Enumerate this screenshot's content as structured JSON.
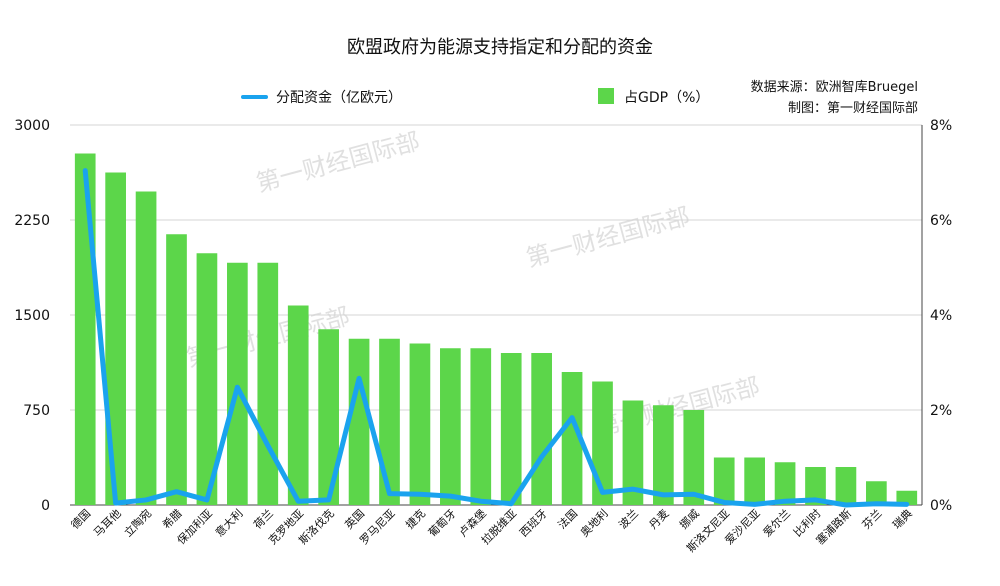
{
  "chart_data": {
    "type": "bar",
    "title": "欧盟政府为能源支持指定和分配的资金",
    "source_lines": [
      "数据来源：欧洲智库Bruegel",
      "制图：第一财经国际部"
    ],
    "watermark": "第一财经国际部",
    "categories": [
      "德国",
      "马耳他",
      "立陶宛",
      "希腊",
      "保加利亚",
      "意大利",
      "荷兰",
      "克罗地亚",
      "斯洛伐克",
      "英国",
      "罗马尼亚",
      "捷克",
      "葡萄牙",
      "卢森堡",
      "拉脱维亚",
      "西班牙",
      "法国",
      "奥地利",
      "波兰",
      "丹麦",
      "挪威",
      "斯洛文尼亚",
      "爱沙尼亚",
      "爱尔兰",
      "比利时",
      "塞浦路斯",
      "芬兰",
      "瑞典"
    ],
    "series": [
      {
        "name": "占GDP（%）",
        "kind": "bar",
        "axis": "right",
        "color": "#5cd64a",
        "values": [
          7.4,
          7.0,
          6.6,
          5.7,
          5.3,
          5.1,
          5.1,
          4.2,
          3.7,
          3.5,
          3.5,
          3.4,
          3.3,
          3.3,
          3.2,
          3.2,
          2.8,
          2.6,
          2.2,
          2.1,
          2.0,
          1.0,
          1.0,
          0.9,
          0.8,
          0.8,
          0.5,
          0.3
        ]
      },
      {
        "name": "分配资金（亿欧元）",
        "kind": "line",
        "axis": "left",
        "color": "#1aa3ee",
        "values": [
          2640,
          15,
          40,
          105,
          40,
          930,
          470,
          30,
          40,
          1000,
          90,
          85,
          70,
          30,
          10,
          380,
          690,
          100,
          125,
          80,
          85,
          20,
          5,
          30,
          40,
          0,
          10,
          5
        ]
      }
    ],
    "y_left": {
      "min": 0,
      "max": 3000,
      "ticks": [
        "0",
        "750",
        "1500",
        "2250",
        "3000"
      ]
    },
    "y_right": {
      "min": 0,
      "max": 8,
      "ticks": [
        "0%",
        "2%",
        "4%",
        "6%",
        "8%"
      ]
    },
    "grid": "horizontal",
    "legend_position": "top"
  }
}
